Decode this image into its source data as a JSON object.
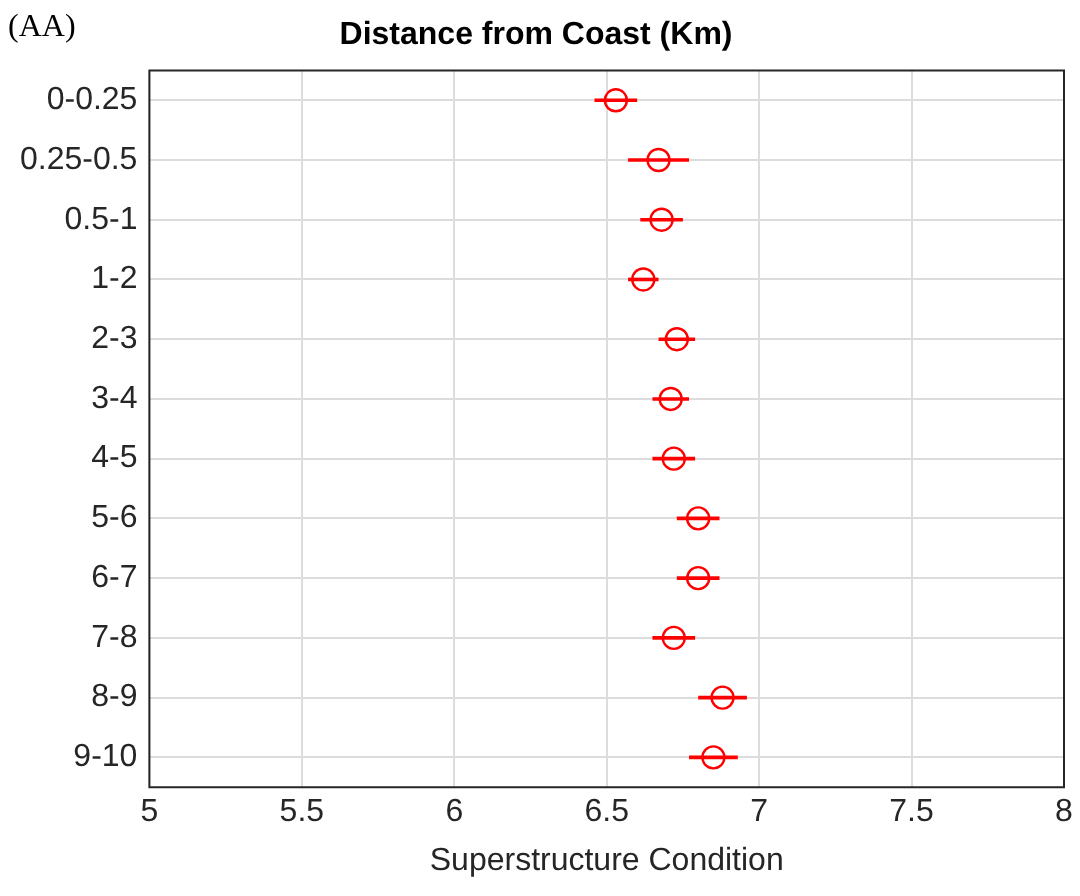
{
  "chart_data": {
    "type": "scatter",
    "orientation": "horizontal",
    "title": "Distance from Coast (Km)",
    "xlabel": "Superstructure Condition",
    "annotations": [
      "(AA)"
    ],
    "categories": [
      "0-0.25",
      "0.25-0.5",
      "0.5-1",
      "1-2",
      "2-3",
      "3-4",
      "4-5",
      "5-6",
      "6-7",
      "7-8",
      "8-9",
      "9-10"
    ],
    "values": [
      6.53,
      6.67,
      6.68,
      6.62,
      6.73,
      6.71,
      6.72,
      6.8,
      6.8,
      6.72,
      6.88,
      6.85
    ],
    "errors": [
      0.07,
      0.1,
      0.07,
      0.05,
      0.06,
      0.06,
      0.07,
      0.07,
      0.07,
      0.07,
      0.08,
      0.08
    ],
    "color": "#ff0000",
    "marker": "circle",
    "xlim": [
      5,
      8
    ],
    "xticks": [
      5,
      5.5,
      6,
      6.5,
      7,
      7.5,
      8
    ],
    "grid": true,
    "legend": false
  }
}
